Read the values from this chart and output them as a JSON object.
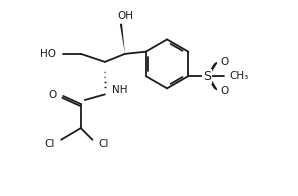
{
  "bg_color": "#ffffff",
  "line_color": "#1a1a1a",
  "bond_lw": 1.3,
  "figsize": [
    2.98,
    1.96
  ],
  "dpi": 100,
  "xlim": [
    -0.3,
    10.2
  ],
  "ylim": [
    -2.2,
    7.5
  ]
}
